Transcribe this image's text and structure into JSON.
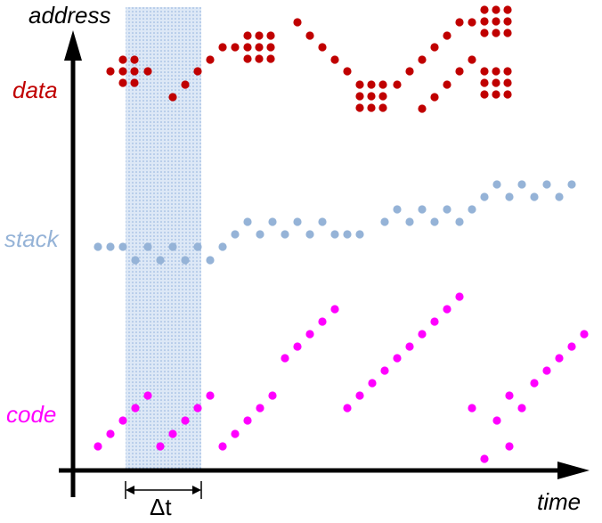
{
  "axes": {
    "y_label": "address",
    "x_label": "time"
  },
  "regions": {
    "data": {
      "label": "data",
      "color": "#c00000"
    },
    "stack": {
      "label": "stack",
      "color": "#95b3d7"
    },
    "code": {
      "label": "code",
      "color": "#ff00ff"
    }
  },
  "window": {
    "label": "Δt",
    "fill": "#c5d9f1"
  }
}
